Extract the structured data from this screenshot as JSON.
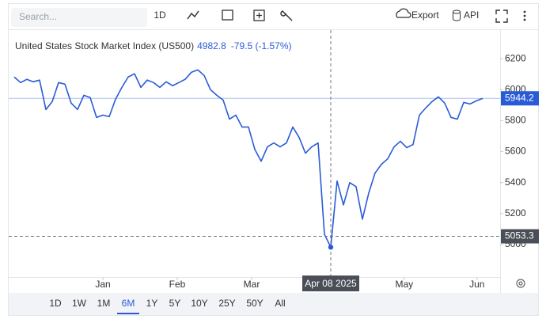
{
  "toolbar": {
    "search_placeholder": "Search...",
    "interval": "1D",
    "export": "Export",
    "api": "API"
  },
  "chart_data": {
    "type": "line",
    "title": "United States Stock Market Index (US500)",
    "header_value": 4982.8,
    "header_change": "-79.5 (-1.57%)",
    "series": [
      {
        "name": "US500",
        "color": "#2a5bd7",
        "values": [
          6082,
          6046,
          6067,
          6051,
          6062,
          5872,
          5923,
          6046,
          6036,
          5913,
          5872,
          5964,
          5949,
          5821,
          5836,
          5826,
          5938,
          6015,
          6082,
          6103,
          6015,
          6062,
          6046,
          6015,
          6051,
          6026,
          6046,
          6067,
          6113,
          6128,
          6092,
          6000,
          5964,
          5933,
          5810,
          5836,
          5759,
          5759,
          5615,
          5538,
          5631,
          5656,
          5631,
          5656,
          5759,
          5692,
          5590,
          5631,
          5656,
          5067,
          4982.8,
          5410,
          5256,
          5400,
          5374,
          5164,
          5333,
          5462,
          5518,
          5554,
          5631,
          5667,
          5626,
          5646,
          5836,
          5882,
          5923,
          5954,
          5913,
          5821,
          5810,
          5918,
          5908,
          5928,
          5944.2
        ]
      }
    ],
    "xlim": [
      0,
      74
    ],
    "xticks": [
      {
        "value": 14,
        "label": "Jan"
      },
      {
        "value": 25.75,
        "label": "Feb"
      },
      {
        "value": 37.5,
        "label": "Mar"
      },
      {
        "value": 61.6,
        "label": "May"
      },
      {
        "value": 73.1,
        "label": "Jun"
      }
    ],
    "ylim": [
      4790,
      6385
    ],
    "yticks": [
      5000,
      5200,
      5400,
      5600,
      5800,
      6000,
      6200
    ],
    "last_value": 5944.2,
    "crosshair": {
      "x": 50,
      "x_label": "Apr 08 2025",
      "y": 5053.3
    }
  },
  "range_buttons": {
    "items": [
      "1D",
      "1W",
      "1M",
      "6M",
      "1Y",
      "5Y",
      "10Y",
      "25Y",
      "50Y",
      "All"
    ],
    "active": 3
  }
}
